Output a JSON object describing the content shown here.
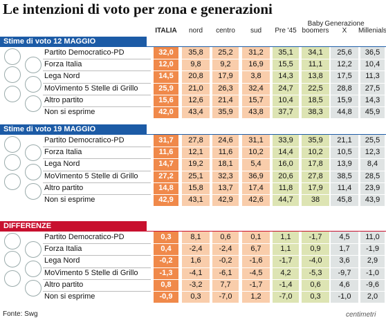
{
  "title": "Le intenzioni di voto per zona e generazioni",
  "columns": [
    "ITALIA",
    "nord",
    "centro",
    "sud",
    "Pre '45",
    "Baby boomers",
    "Generazione X",
    "Millenials"
  ],
  "sections": [
    {
      "heading": "Stime di voto 12 MAGGIO",
      "rows": [
        {
          "party": "Partito Democratico-PD",
          "values": [
            "32,0",
            "35,8",
            "25,2",
            "31,2",
            "35,1",
            "34,1",
            "25,6",
            "36,5"
          ]
        },
        {
          "party": "Forza Italia",
          "values": [
            "12,0",
            "9,8",
            "9,2",
            "16,9",
            "15,5",
            "11,1",
            "12,2",
            "10,4"
          ]
        },
        {
          "party": "Lega Nord",
          "values": [
            "14,5",
            "20,8",
            "17,9",
            "3,8",
            "14,3",
            "13,8",
            "17,5",
            "11,3"
          ]
        },
        {
          "party": "MoVimento 5 Stelle di Grillo",
          "values": [
            "25,9",
            "21,0",
            "26,3",
            "32,4",
            "24,7",
            "22,5",
            "28,8",
            "27,5"
          ]
        },
        {
          "party": "Altro partito",
          "values": [
            "15,6",
            "12,6",
            "21,4",
            "15,7",
            "10,4",
            "18,5",
            "15,9",
            "14,3"
          ]
        },
        {
          "party": "Non si esprime",
          "values": [
            "42,0",
            "43,4",
            "35,9",
            "43,8",
            "37,7",
            "38,3",
            "44,8",
            "45,9"
          ]
        }
      ]
    },
    {
      "heading": "Stime di voto 19 MAGGIO",
      "rows": [
        {
          "party": "Partito Democratico-PD",
          "values": [
            "31,7",
            "27,8",
            "24,6",
            "31,1",
            "33,9",
            "35,9",
            "21,1",
            "25,5"
          ]
        },
        {
          "party": "Forza Italia",
          "values": [
            "11,6",
            "12,1",
            "11,6",
            "10,2",
            "14,4",
            "10,2",
            "10,5",
            "12,3"
          ]
        },
        {
          "party": "Lega Nord",
          "values": [
            "14,7",
            "19,2",
            "18,1",
            "5,4",
            "16,0",
            "17,8",
            "13,9",
            "8,4"
          ]
        },
        {
          "party": "MoVimento 5 Stelle di Grillo",
          "values": [
            "27,2",
            "25,1",
            "32,3",
            "36,9",
            "20,6",
            "27,8",
            "38,5",
            "28,5"
          ]
        },
        {
          "party": "Altro partito",
          "values": [
            "14,8",
            "15,8",
            "13,7",
            "17,4",
            "11,8",
            "17,9",
            "11,4",
            "23,9"
          ]
        },
        {
          "party": "Non si esprime",
          "values": [
            "42,9",
            "43,1",
            "42,9",
            "42,6",
            "44,7",
            "38",
            "45,8",
            "43,9"
          ]
        }
      ]
    },
    {
      "heading": "DIFFERENZE",
      "rows": [
        {
          "party": "Partito Democratico-PD",
          "values": [
            "0,3",
            "8,1",
            "0,6",
            "0,1",
            "1,1",
            "-1,7",
            "4,5",
            "11,0"
          ]
        },
        {
          "party": "Forza Italia",
          "values": [
            "0,4",
            "-2,4",
            "-2,4",
            "6,7",
            "1,1",
            "0,9",
            "1,7",
            "-1,9"
          ]
        },
        {
          "party": "Lega Nord",
          "values": [
            "-0,2",
            "1,6",
            "-0,2",
            "-1,6",
            "-1,7",
            "-4,0",
            "3,6",
            "2,9"
          ]
        },
        {
          "party": "MoVimento 5 Stelle di Grillo",
          "values": [
            "-1,3",
            "-4,1",
            "-6,1",
            "-4,5",
            "4,2",
            "-5,3",
            "-9,7",
            "-1,0"
          ]
        },
        {
          "party": "Altro partito",
          "values": [
            "0,8",
            "-3,2",
            "7,7",
            "-1,7",
            "-1,4",
            "0,6",
            "4,6",
            "-9,6"
          ]
        },
        {
          "party": "Non si esprime",
          "values": [
            "-0,9",
            "0,3",
            "-7,0",
            "1,2",
            "-7,0",
            "0,3",
            "-1,0",
            "2,0"
          ]
        }
      ]
    }
  ],
  "source": "Fonte: Swg",
  "brand": "centimetri"
}
